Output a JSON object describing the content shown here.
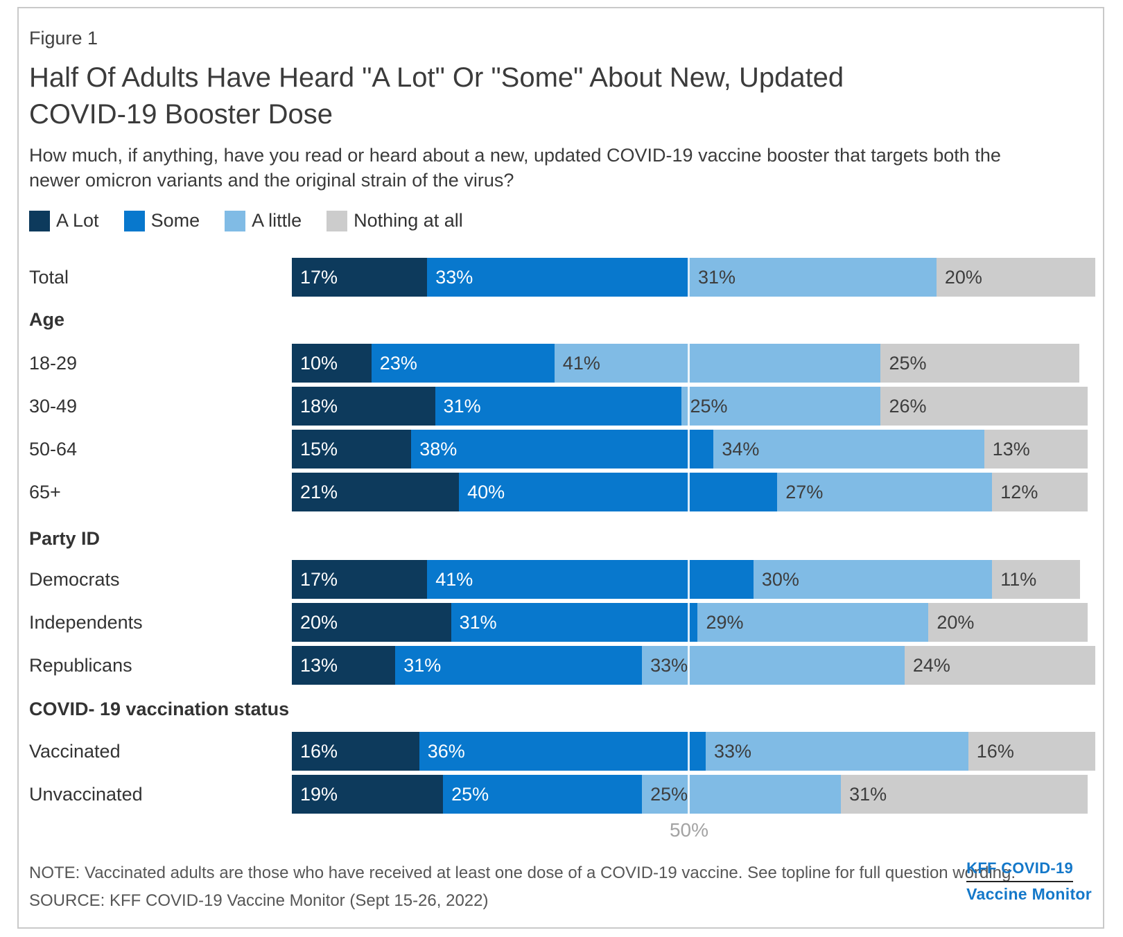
{
  "figure_label": "Figure 1",
  "title_lines": [
    "Half Of Adults Have Heard \"A Lot\" Or \"Some\" About New, Updated",
    "COVID-19 Booster Dose"
  ],
  "subtitle_lines": [
    "How much, if anything, have you read or heard about a new, updated COVID-19 vaccine booster that targets both the",
    "newer omicron variants and the original strain of the virus?"
  ],
  "colors": {
    "a_lot": "#0d3a5c",
    "some": "#0878cd",
    "a_little": "#80bbe5",
    "nothing": "#cccccc",
    "brand_blue": "#1478c9"
  },
  "legend": [
    {
      "label": "A Lot",
      "color_key": "a_lot"
    },
    {
      "label": "Some",
      "color_key": "some"
    },
    {
      "label": "A little",
      "color_key": "a_little"
    },
    {
      "label": "Nothing at all",
      "color_key": "nothing"
    }
  ],
  "chart_data": {
    "type": "bar",
    "stacked": true,
    "orientation": "horizontal",
    "unit": "%",
    "series": [
      "A Lot",
      "Some",
      "A little",
      "Nothing at all"
    ],
    "x_axis": {
      "max": 100,
      "gridline_at": 50,
      "tick_label": "50%"
    },
    "groups": [
      {
        "header": "",
        "rows": [
          {
            "label": "Total",
            "values": [
              17,
              33,
              31,
              20
            ]
          }
        ]
      },
      {
        "header": "Age",
        "rows": [
          {
            "label": "18-29",
            "values": [
              10,
              23,
              41,
              25
            ]
          },
          {
            "label": "30-49",
            "values": [
              18,
              31,
              25,
              26
            ]
          },
          {
            "label": "50-64",
            "values": [
              15,
              38,
              34,
              13
            ]
          },
          {
            "label": "65+",
            "values": [
              21,
              40,
              27,
              12
            ]
          }
        ]
      },
      {
        "header": "Party ID",
        "rows": [
          {
            "label": "Democrats",
            "values": [
              17,
              41,
              30,
              11
            ]
          },
          {
            "label": "Independents",
            "values": [
              20,
              31,
              29,
              20
            ]
          },
          {
            "label": "Republicans",
            "values": [
              13,
              31,
              33,
              24
            ]
          }
        ]
      },
      {
        "header": "COVID- 19 vaccination status",
        "rows": [
          {
            "label": "Vaccinated",
            "values": [
              16,
              36,
              33,
              16
            ]
          },
          {
            "label": "Unvaccinated",
            "values": [
              19,
              25,
              25,
              31
            ]
          }
        ]
      }
    ]
  },
  "footer": {
    "note": "NOTE: Vaccinated adults are those who have received at least one dose of a COVID-19 vaccine. See topline for full question wording.",
    "source": "SOURCE: KFF COVID-19 Vaccine Monitor (Sept 15-26, 2022)",
    "logo_line1": "KFF COVID-19",
    "logo_line2": "Vaccine Monitor"
  }
}
